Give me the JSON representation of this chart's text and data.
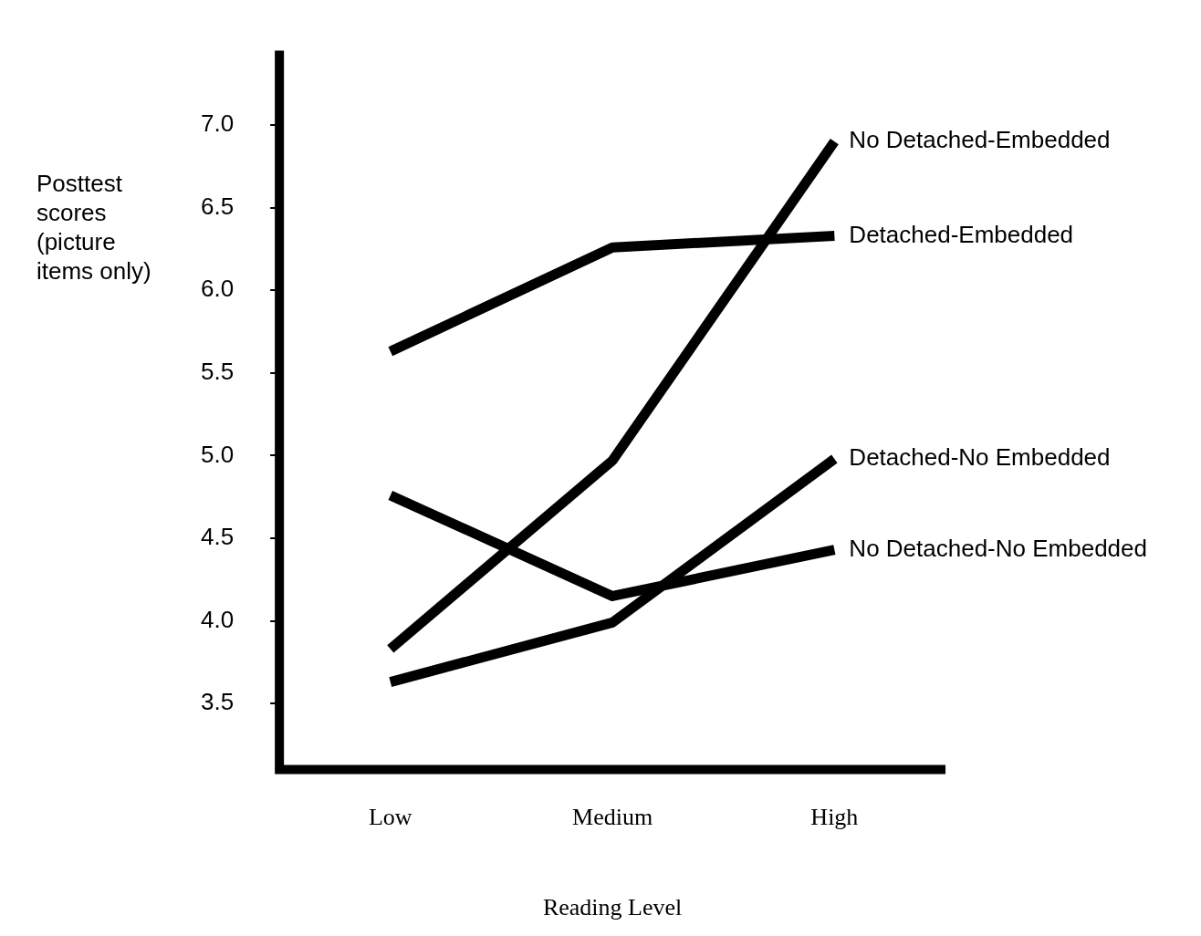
{
  "chart_data": {
    "type": "line",
    "xlabel": "Reading Level",
    "ylabel": "Posttest scores (picture items only)",
    "categories": [
      "Low",
      "Medium",
      "High"
    ],
    "series": [
      {
        "name": "No Detached-Embedded",
        "color": "#000000",
        "values": [
          3.83,
          4.97,
          6.9
        ]
      },
      {
        "name": "Detached-Embedded",
        "color": "#000000",
        "values": [
          5.63,
          6.26,
          6.33
        ]
      },
      {
        "name": "Detached-No Embedded",
        "color": "#000000",
        "values": [
          3.63,
          3.99,
          4.98
        ]
      },
      {
        "name": "No Detached-No Embedded",
        "color": "#000000",
        "values": [
          4.76,
          4.15,
          4.43
        ]
      }
    ],
    "ylim": [
      3.1,
      7.45
    ],
    "yticks": [
      {
        "value": 3.5,
        "label": "3.5"
      },
      {
        "value": 4,
        "label": "4.0"
      },
      {
        "value": 4.5,
        "label": "4.5"
      },
      {
        "value": 5,
        "label": "5.0"
      },
      {
        "value": 5.5,
        "label": "5.5"
      },
      {
        "value": 6,
        "label": "6.0"
      },
      {
        "value": 6.5,
        "label": "6.5"
      },
      {
        "value": 7,
        "label": "7.0"
      }
    ],
    "legend": false,
    "grid": false,
    "marker": "none",
    "line_style": "solid"
  }
}
